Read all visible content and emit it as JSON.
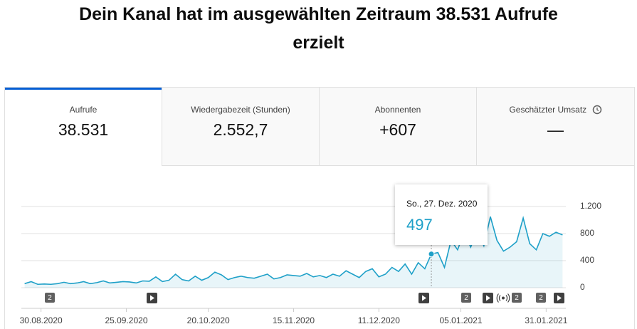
{
  "header": {
    "title_line1": "Dein Kanal hat im ausgewählten Zeitraum 38.531 Aufrufe",
    "title_line2": "erzielt"
  },
  "tabs": [
    {
      "label": "Aufrufe",
      "value": "38.531"
    },
    {
      "label": "Wiedergabezeit (Stunden)",
      "value": "2.552,7"
    },
    {
      "label": "Abonnenten",
      "value": "+607"
    },
    {
      "label": "Geschätzter Umsatz",
      "value": "—"
    }
  ],
  "tooltip": {
    "date_label": "So., 27. Dez. 2020"
  },
  "event_markers": [
    "2",
    "2",
    "2",
    "2"
  ],
  "chart_data": {
    "type": "line",
    "x": [
      "25.08.2020",
      "27.08.2020",
      "29.08.2020",
      "31.08.2020",
      "02.09.2020",
      "04.09.2020",
      "06.09.2020",
      "08.09.2020",
      "10.09.2020",
      "12.09.2020",
      "14.09.2020",
      "16.09.2020",
      "18.09.2020",
      "20.09.2020",
      "22.09.2020",
      "24.09.2020",
      "26.09.2020",
      "28.09.2020",
      "30.09.2020",
      "02.10.2020",
      "04.10.2020",
      "06.10.2020",
      "08.10.2020",
      "10.10.2020",
      "12.10.2020",
      "14.10.2020",
      "16.10.2020",
      "18.10.2020",
      "20.10.2020",
      "22.10.2020",
      "24.10.2020",
      "26.10.2020",
      "28.10.2020",
      "30.10.2020",
      "01.11.2020",
      "03.11.2020",
      "05.11.2020",
      "07.11.2020",
      "09.11.2020",
      "11.11.2020",
      "13.11.2020",
      "15.11.2020",
      "17.11.2020",
      "19.11.2020",
      "21.11.2020",
      "23.11.2020",
      "25.11.2020",
      "27.11.2020",
      "29.11.2020",
      "01.12.2020",
      "03.12.2020",
      "05.12.2020",
      "07.12.2020",
      "09.12.2020",
      "11.12.2020",
      "13.12.2020",
      "15.12.2020",
      "17.12.2020",
      "19.12.2020",
      "21.12.2020",
      "23.12.2020",
      "25.12.2020",
      "27.12.2020",
      "29.12.2020",
      "31.12.2020",
      "02.01.2021",
      "04.01.2021",
      "06.01.2021",
      "08.01.2021",
      "10.01.2021",
      "12.01.2021",
      "14.01.2021",
      "16.01.2021",
      "18.01.2021",
      "20.01.2021",
      "22.01.2021",
      "24.01.2021",
      "26.01.2021",
      "28.01.2021",
      "30.01.2021",
      "01.02.2021",
      "03.02.2021",
      "05.02.2021"
    ],
    "series": [
      {
        "name": "Aufrufe",
        "color": "#1ea0c8",
        "values": [
          60,
          90,
          50,
          55,
          50,
          60,
          80,
          60,
          70,
          90,
          60,
          75,
          100,
          70,
          80,
          90,
          85,
          70,
          100,
          95,
          160,
          90,
          110,
          200,
          120,
          100,
          170,
          110,
          150,
          230,
          190,
          120,
          150,
          170,
          150,
          140,
          170,
          200,
          130,
          150,
          190,
          180,
          170,
          210,
          160,
          180,
          150,
          200,
          170,
          250,
          200,
          150,
          240,
          280,
          160,
          200,
          300,
          240,
          350,
          200,
          370,
          280,
          497,
          520,
          300,
          700,
          560,
          820,
          600,
          850,
          620,
          1050,
          700,
          540,
          600,
          680,
          1030,
          650,
          560,
          800,
          760,
          820,
          780
        ]
      }
    ],
    "xlim": [
      "24.08.2020",
      "06.02.2021"
    ],
    "xticks": [
      "30.08.2020",
      "25.09.2020",
      "20.10.2020",
      "15.11.2020",
      "11.12.2020",
      "05.01.2021",
      "31.01.2021"
    ],
    "ylim": [
      0,
      1200
    ],
    "yticks": [
      0,
      400,
      800,
      {
        "value": 1200,
        "label": "1.200"
      }
    ],
    "grid": true
  }
}
